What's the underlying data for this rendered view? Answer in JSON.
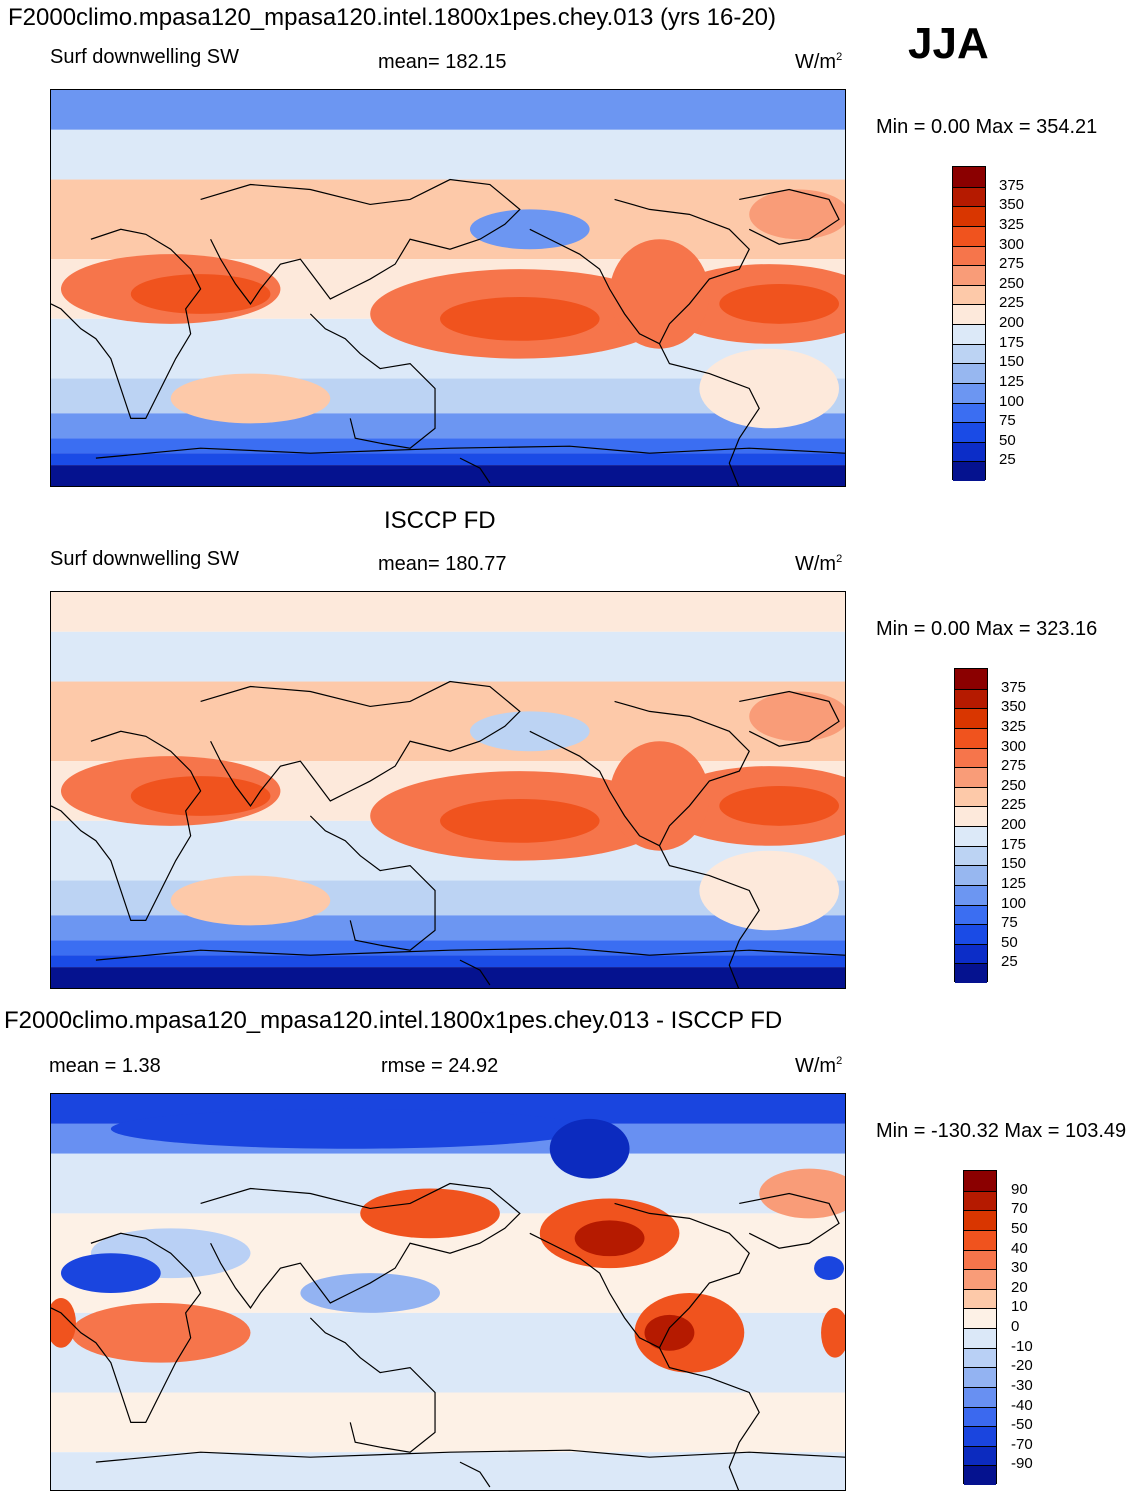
{
  "season": "JJA",
  "panels": [
    {
      "title": "F2000climo.mpasa120_mpasa120.intel.1800x1pes.chey.013 (yrs 16-20)",
      "variable": "Surf downwelling SW",
      "mean_label": "mean= 182.15",
      "unit_base": "W/m",
      "unit_exp": "2",
      "minmax": "Min =    0.00 Max = 354.21",
      "colorbar_labels": [
        "375",
        "350",
        "325",
        "300",
        "275",
        "250",
        "225",
        "200",
        "175",
        "150",
        "125",
        "100",
        "75",
        "50",
        "25"
      ],
      "colors": [
        "#8b0000",
        "#b51a00",
        "#d93600",
        "#f0531e",
        "#f6754b",
        "#f99c78",
        "#fdc9a9",
        "#fde9db",
        "#dce9f8",
        "#bcd3f3",
        "#97b7f0",
        "#6c96f2",
        "#3b6ef2",
        "#1a4be6",
        "#0c2dc8",
        "#05128f"
      ]
    },
    {
      "title": "ISCCP FD",
      "variable": "Surf downwelling SW",
      "mean_label": "mean= 180.77",
      "unit_base": "W/m",
      "unit_exp": "2",
      "minmax": "Min =    0.00 Max = 323.16",
      "colorbar_labels": [
        "375",
        "350",
        "325",
        "300",
        "275",
        "250",
        "225",
        "200",
        "175",
        "150",
        "125",
        "100",
        "75",
        "50",
        "25"
      ],
      "colors": [
        "#8b0000",
        "#b51a00",
        "#d93600",
        "#f0531e",
        "#f6754b",
        "#f99c78",
        "#fdc9a9",
        "#fde9db",
        "#dce9f8",
        "#bcd3f3",
        "#97b7f0",
        "#6c96f2",
        "#3b6ef2",
        "#1a4be6",
        "#0c2dc8",
        "#05128f"
      ]
    },
    {
      "title": "F2000climo.mpasa120_mpasa120.intel.1800x1pes.chey.013 - ISCCP FD",
      "mean_label": "mean =    1.38",
      "rmse_label": "rmse =   24.92",
      "unit_base": "W/m",
      "unit_exp": "2",
      "minmax": "Min = -130.32 Max = 103.49",
      "colorbar_labels": [
        "90",
        "70",
        "50",
        "40",
        "30",
        "20",
        "10",
        "0",
        "-10",
        "-20",
        "-30",
        "-40",
        "-50",
        "-70",
        "-90"
      ],
      "colors": [
        "#8b0000",
        "#b51a00",
        "#d93600",
        "#f0531e",
        "#f6754b",
        "#f99c78",
        "#fdc9a9",
        "#fdf1e6",
        "#dbe8f8",
        "#b9d0f5",
        "#93b3f2",
        "#6890f2",
        "#3b69ef",
        "#1a45df",
        "#0c2bbf",
        "#05128f"
      ]
    }
  ]
}
